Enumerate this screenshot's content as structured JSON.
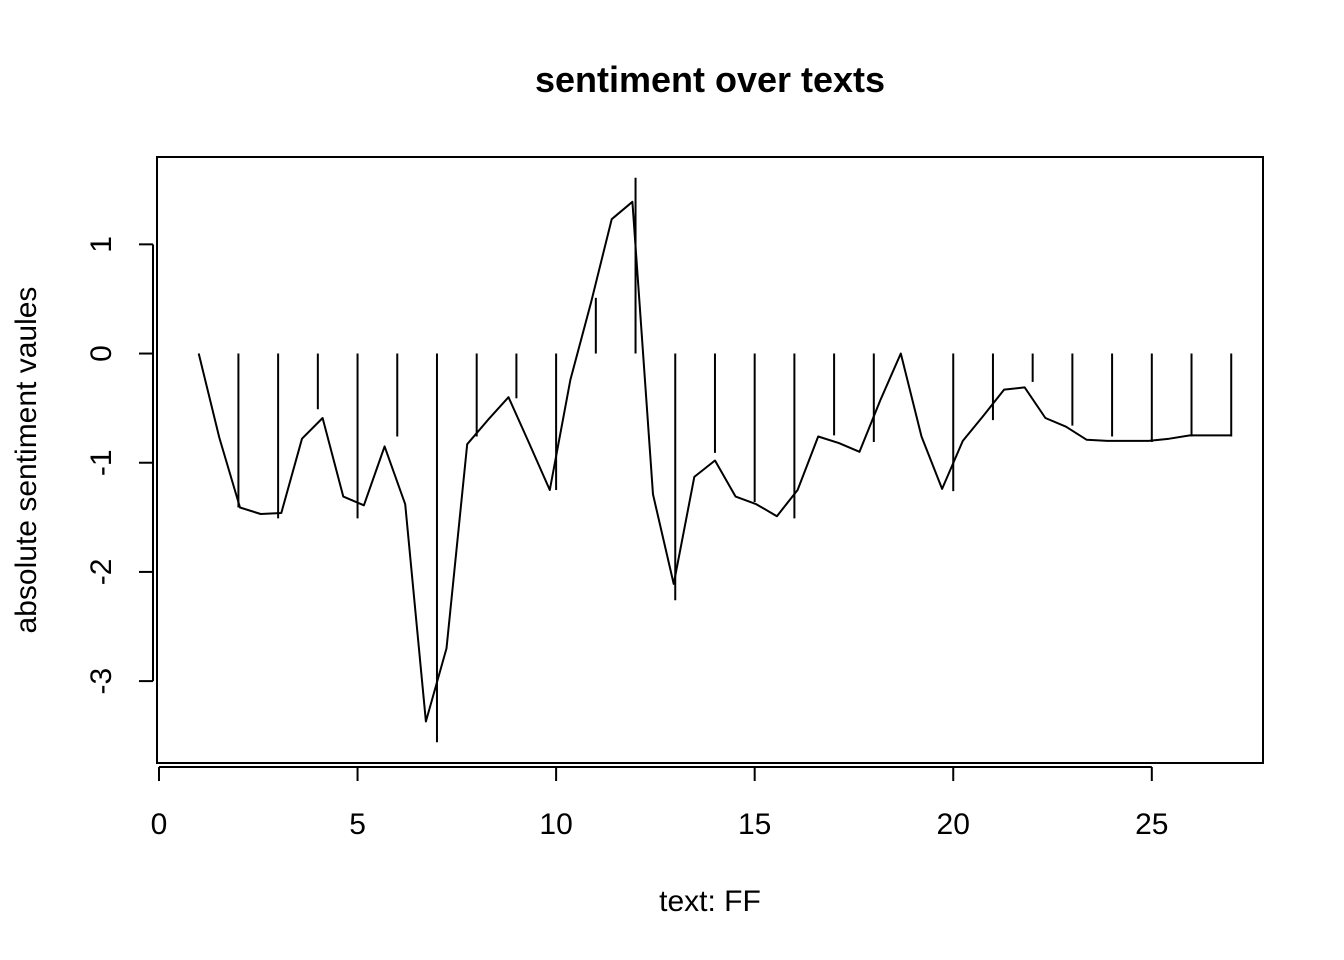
{
  "chart_data": {
    "type": "line",
    "title": "sentiment over texts",
    "xlabel": "text: FF",
    "ylabel": "absolute sentiment vaules",
    "xlim": [
      -0.05,
      27.8
    ],
    "ylim": [
      -3.75,
      1.8
    ],
    "x_ticks": [
      0,
      5,
      10,
      15,
      20,
      25
    ],
    "y_ticks": [
      -3,
      -2,
      -1,
      0,
      1
    ],
    "grid": false,
    "spikes": {
      "x": [
        1,
        2,
        3,
        4,
        5,
        6,
        7,
        8,
        9,
        10,
        11,
        12,
        13,
        14,
        15,
        16,
        17,
        18,
        19,
        20,
        21,
        22,
        23,
        24,
        25,
        26,
        27
      ],
      "values": [
        0,
        -1.41,
        -1.51,
        -0.51,
        -1.51,
        -0.76,
        -3.56,
        -0.76,
        -0.41,
        -1.25,
        0.51,
        1.61,
        -2.26,
        -0.91,
        -1.36,
        -1.51,
        -0.75,
        -0.81,
        0,
        -1.26,
        -0.61,
        -0.26,
        -0.66,
        -0.76,
        -0.81,
        -0.76,
        -0.76
      ]
    },
    "series": [
      {
        "x": [
          1,
          1.52,
          2.04,
          2.56,
          3.08,
          3.6,
          4.12,
          4.64,
          5.16,
          5.68,
          6.2,
          6.72,
          7.24,
          7.76,
          8.28,
          8.8,
          9.32,
          9.84,
          10.36,
          10.88,
          11.4,
          11.92,
          12.44,
          12.96,
          13.48,
          14,
          14.52,
          15.04,
          15.56,
          16.08,
          16.6,
          17.12,
          17.64,
          18.16,
          18.68,
          19.2,
          19.72,
          20.24,
          20.76,
          21.28,
          21.8,
          22.32,
          22.84,
          23.36,
          23.88,
          24.4,
          24.92,
          25.44,
          25.96,
          26.48,
          27
        ],
        "y": [
          0,
          -0.77,
          -1.41,
          -1.47,
          -1.46,
          -0.78,
          -0.59,
          -1.31,
          -1.39,
          -0.85,
          -1.38,
          -3.37,
          -2.7,
          -0.83,
          -0.61,
          -0.4,
          -0.82,
          -1.25,
          -0.24,
          0.47,
          1.23,
          1.39,
          -1.29,
          -2.11,
          -1.13,
          -0.98,
          -1.31,
          -1.38,
          -1.49,
          -1.25,
          -0.76,
          -0.82,
          -0.9,
          -0.43,
          0,
          -0.76,
          -1.24,
          -0.8,
          -0.57,
          -0.33,
          -0.31,
          -0.59,
          -0.67,
          -0.79,
          -0.8,
          -0.8,
          -0.8,
          -0.78,
          -0.75,
          -0.75,
          -0.75
        ]
      }
    ]
  }
}
